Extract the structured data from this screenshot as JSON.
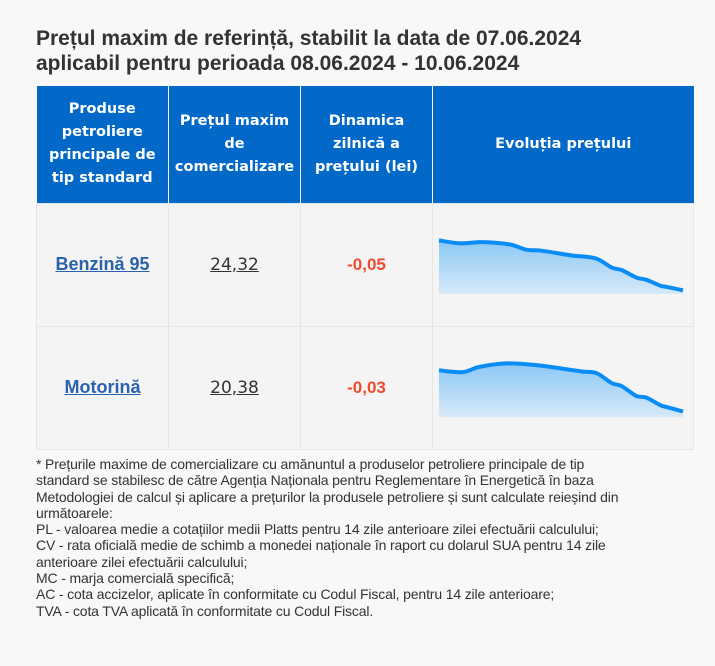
{
  "title": {
    "line1": "Prețul maxim de referință, stabilit la data de 07.06.2024",
    "line2": "aplicabil pentru perioada 08.06.2024 - 10.06.2024"
  },
  "table": {
    "headers": [
      "Produse petroliere principale de tip standard",
      "Prețul maxim de comercializare",
      "Dinamica zilnică a prețului (lei)",
      "Evoluția prețului"
    ],
    "rows": [
      {
        "product": "Benzină 95",
        "price": "24,32",
        "delta": "-0,05"
      },
      {
        "product": "Motorină",
        "price": "20,38",
        "delta": "-0,03"
      }
    ]
  },
  "colors": {
    "header_bg": "#0369c9",
    "link": "#2a62ad",
    "delta_negative": "#f04a2e",
    "sparkline": "#0a8cf5"
  },
  "chart_data": [
    {
      "type": "area",
      "title": "Evoluția prețului - Benzină 95",
      "note": "sparkline without axes; values are relative price levels (0 = lowest, 1 = highest of plot range)",
      "values": [
        0.89,
        0.84,
        0.86,
        0.82,
        0.73,
        0.71,
        0.63,
        0.58,
        0.42,
        0.38,
        0.25,
        0.21,
        0.11,
        0.09,
        0.03
      ],
      "x": [
        0,
        0.085,
        0.178,
        0.287,
        0.355,
        0.42,
        0.54,
        0.637,
        0.702,
        0.742,
        0.802,
        0.843,
        0.899,
        0.923,
        0.992
      ],
      "ylim": [
        0,
        1
      ]
    },
    {
      "type": "area",
      "title": "Evoluția prețului - Motorină",
      "note": "sparkline without axes; values are relative price levels (0 = lowest, 1 = highest of plot range)",
      "values": [
        0.77,
        0.74,
        0.83,
        0.89,
        0.86,
        0.8,
        0.75,
        0.72,
        0.55,
        0.5,
        0.33,
        0.3,
        0.17,
        0.14,
        0.06
      ],
      "x": [
        0,
        0.097,
        0.165,
        0.274,
        0.395,
        0.5,
        0.581,
        0.641,
        0.702,
        0.742,
        0.802,
        0.843,
        0.899,
        0.923,
        0.992
      ],
      "ylim": [
        0,
        1
      ]
    }
  ],
  "footnote": {
    "lines": [
      "* Prețurile maxime de comercializare cu amănuntul a produselor petroliere principale de tip",
      "standard se stabilesc de către Agenția Naționala pentru Reglementare în Energetică în baza",
      "Metodologiei de calcul și aplicare a prețurilor la produsele petroliere și sunt calculate reieșind din",
      "următoarele:",
      "PL - valoarea medie a cotațiilor medii Platts pentru 14 zile anterioare zilei efectuării calculului;",
      "CV - rata oficială medie de schimb a monedei naționale în raport cu dolarul SUA pentru 14 zile",
      "anterioare zilei efectuării calculului;",
      "MC - marja comercială specifică;",
      "AC - cota accizelor, aplicate în conformitate cu Codul Fiscal, pentru 14 zile anterioare;",
      "TVA - cota TVA aplicată în conformitate cu Codul Fiscal."
    ]
  }
}
